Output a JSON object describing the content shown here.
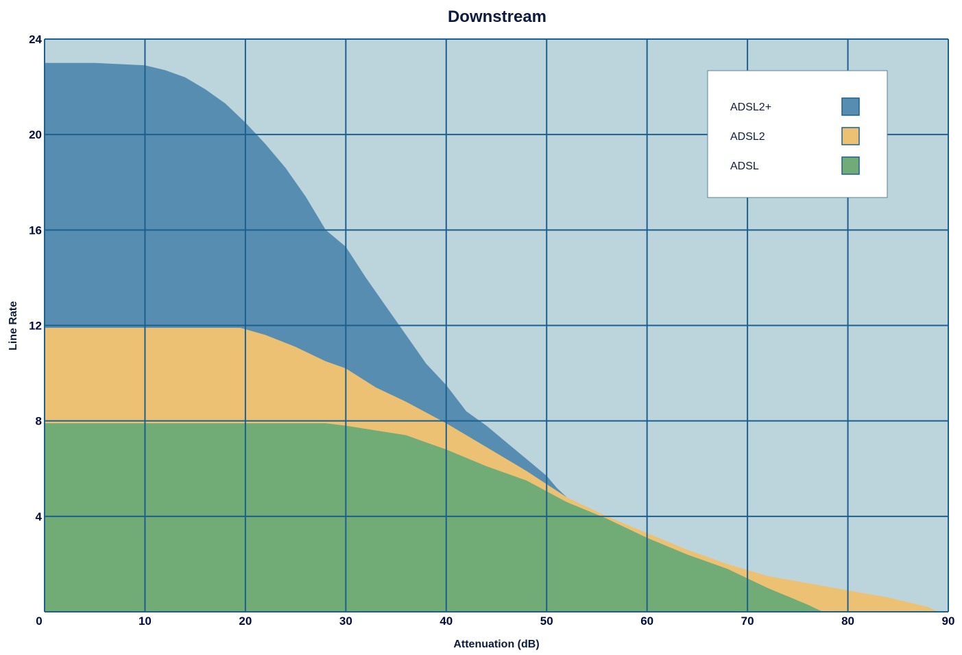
{
  "chart_data": {
    "type": "area",
    "title": "Downstream",
    "xlabel": "Attenuation (dB)",
    "ylabel": "Line Rate",
    "xlim": [
      0,
      90
    ],
    "ylim": [
      0,
      24
    ],
    "x_ticks": [
      0,
      10,
      20,
      30,
      40,
      50,
      60,
      70,
      80,
      90
    ],
    "y_ticks": [
      0,
      4,
      8,
      12,
      16,
      20,
      24
    ],
    "y_tick_labels": [
      "",
      "4",
      "8",
      "12",
      "16",
      "20",
      "24"
    ],
    "grid": true,
    "legend_position": "top-right",
    "colors": {
      "plot_background": "#bcd4dc",
      "grid": "#1a5f8e",
      "ADSL2+": "#578db1",
      "ADSL2": "#edc174",
      "ADSL": "#71ab76"
    },
    "series": [
      {
        "name": "ADSL2+",
        "x": [
          0,
          2,
          5,
          10,
          12,
          14,
          16,
          18,
          20,
          22,
          24,
          26,
          28,
          30,
          32,
          34,
          36,
          38,
          40,
          42,
          44,
          46,
          48,
          50,
          51,
          52
        ],
        "y": [
          23.0,
          23.0,
          23.0,
          22.9,
          22.7,
          22.4,
          21.9,
          21.3,
          20.5,
          19.6,
          18.6,
          17.4,
          16.0,
          15.3,
          14.0,
          12.8,
          11.6,
          10.4,
          9.5,
          8.4,
          7.8,
          7.1,
          6.4,
          5.7,
          5.2,
          4.8
        ]
      },
      {
        "name": "ADSL2",
        "x": [
          0,
          10,
          19.5,
          22,
          25,
          28,
          30,
          33,
          36,
          40,
          44,
          48,
          52,
          56,
          60,
          64,
          68,
          72,
          76,
          80,
          84,
          88,
          89
        ],
        "y": [
          11.9,
          11.9,
          11.9,
          11.6,
          11.1,
          10.5,
          10.2,
          9.4,
          8.8,
          7.9,
          6.9,
          5.9,
          4.8,
          4.0,
          3.3,
          2.6,
          2.0,
          1.5,
          1.2,
          0.9,
          0.6,
          0.2,
          0.0
        ]
      },
      {
        "name": "ADSL",
        "x": [
          0,
          10,
          20,
          28,
          30,
          33,
          36,
          38,
          40,
          44,
          48,
          52,
          56,
          60,
          64,
          68,
          72,
          76,
          77.5
        ],
        "y": [
          7.9,
          7.9,
          7.9,
          7.9,
          7.8,
          7.6,
          7.4,
          7.1,
          6.8,
          6.1,
          5.5,
          4.6,
          3.9,
          3.1,
          2.4,
          1.8,
          1.0,
          0.3,
          0.0
        ]
      }
    ]
  }
}
